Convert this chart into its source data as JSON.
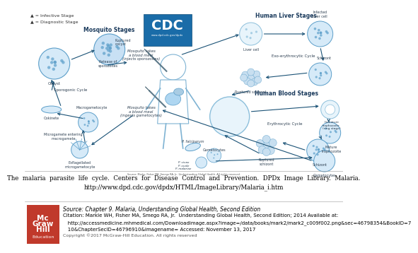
{
  "bg_color": "#ffffff",
  "caption_text1": "The  malaria  parasite  life  cycle.  Centers  for  Disease  Control  and  Prevention.  DPDx  Image  Library.  Malaria.",
  "caption_text2": "http://www.dpd.cdc.gov/dpdx/HTML/ImageLibrary/Malaria_i.htm",
  "source_line1": "Source: Chapter 9. Malaria, Understanding Global Health, Second Edition",
  "source_line2": "Citation: Markle WH, Fisher MA, Smego RA, Jr.  Understanding Global Health, Second Edition; 2014 Available at:",
  "source_line3": "   http://accessmedicine.mhmedical.com/Downloadimage.aspx?image=/data/books/mark2/mark2_c009f002.png&sec=46798354&BookID=7",
  "source_line4": "   10&ChapterSecID=46796910&imagename= Accessed: November 13, 2017",
  "source_line5": "Copyright ©2017 McGraw-Hill Education. All rights reserved",
  "mcgraw_bg": "#c0392b",
  "mcgraw_text": "#ffffff",
  "arrow_color": "#1a5276",
  "cell_fill": "#d6eaf8",
  "cell_edge": "#2980b9",
  "text_dark": "#1a3a5c",
  "text_med": "#2c3e50",
  "cdc_blue": "#1a5276",
  "separator_color": "#999999"
}
